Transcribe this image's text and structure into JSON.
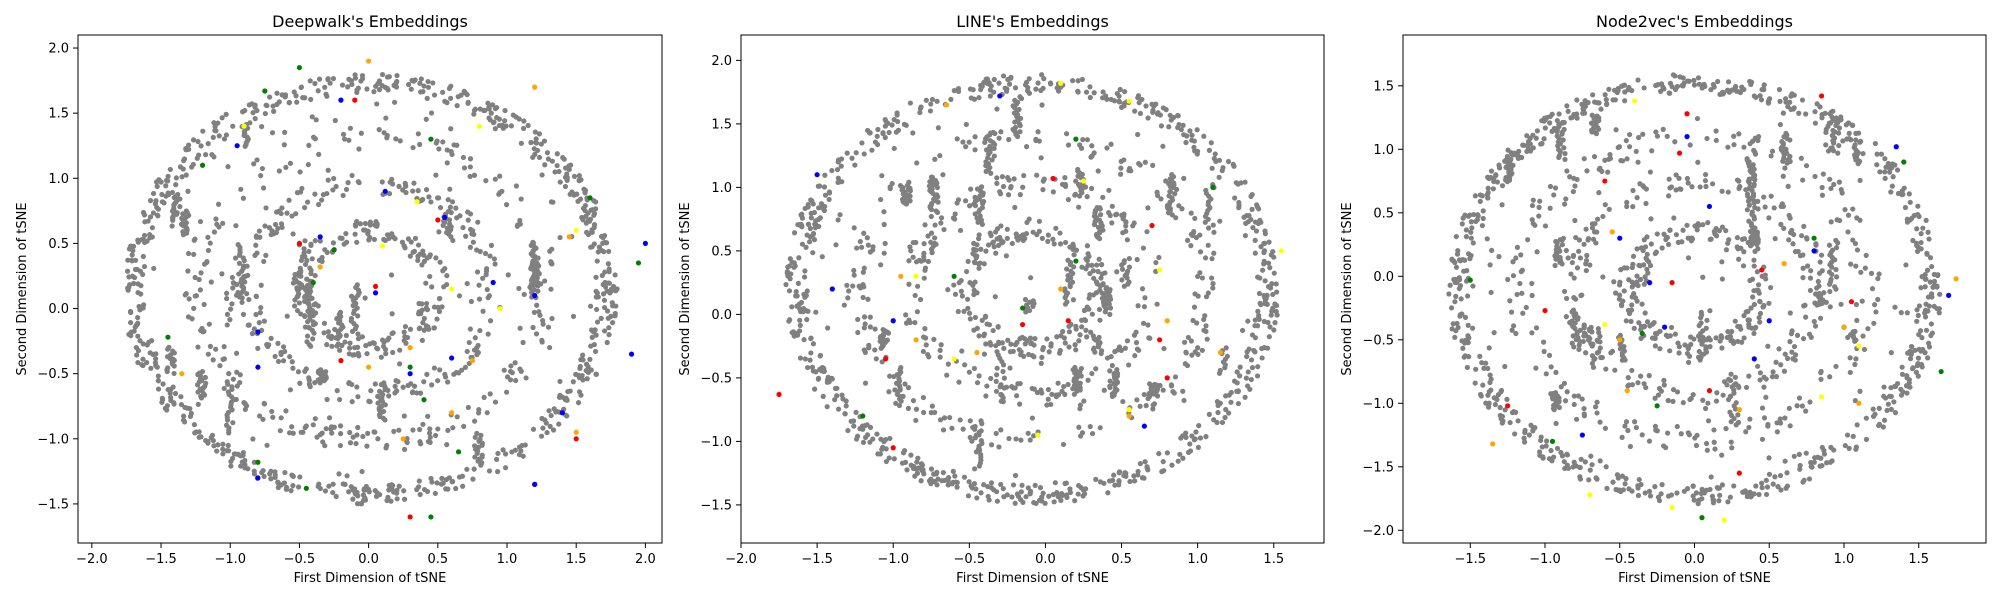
{
  "chart_data": [
    {
      "type": "scatter",
      "title": "Deepwalk's Embeddings",
      "xlabel": "First Dimension of tSNE",
      "ylabel": "Second Dimension of tSNE",
      "xlim": [
        -2.1,
        2.12
      ],
      "ylim": [
        -1.8,
        2.1
      ],
      "xticks": [
        -2.0,
        -1.5,
        -1.0,
        -0.5,
        0.0,
        0.5,
        1.0,
        1.5,
        2.0
      ],
      "xtick_labels": [
        "−2.0",
        "−1.5",
        "−1.0",
        "−0.5",
        "0.0",
        "0.5",
        "1.0",
        "1.5",
        "2.0"
      ],
      "yticks": [
        -1.5,
        -1.0,
        -0.5,
        0.0,
        0.5,
        1.0,
        1.5,
        2.0
      ],
      "ytick_labels": [
        "−1.5",
        "−1.0",
        "−0.5",
        "0.0",
        "0.5",
        "1.0",
        "1.5",
        "2.0"
      ],
      "grid": false,
      "series": [
        {
          "color": "#ff0000",
          "points": [
            [
              -0.5,
              0.5
            ],
            [
              0.05,
              0.17
            ],
            [
              0.5,
              0.68
            ],
            [
              -0.2,
              -0.4
            ],
            [
              1.2,
              -1.35
            ],
            [
              1.5,
              -1.0
            ],
            [
              -0.1,
              1.6
            ],
            [
              0.3,
              -1.6
            ]
          ]
        },
        {
          "color": "#0000ff",
          "points": [
            [
              -0.95,
              1.25
            ],
            [
              -0.2,
              1.6
            ],
            [
              0.12,
              0.9
            ],
            [
              0.55,
              0.7
            ],
            [
              0.9,
              0.2
            ],
            [
              1.2,
              0.1
            ],
            [
              -0.35,
              0.55
            ],
            [
              -0.8,
              -0.18
            ],
            [
              -0.8,
              -0.45
            ],
            [
              0.6,
              -0.38
            ],
            [
              1.4,
              -0.8
            ],
            [
              1.9,
              -0.35
            ],
            [
              -0.8,
              -1.3
            ],
            [
              1.2,
              -1.35
            ],
            [
              2.0,
              0.5
            ],
            [
              0.3,
              -0.5
            ],
            [
              0.05,
              0.12
            ]
          ]
        },
        {
          "color": "#008000",
          "points": [
            [
              -0.5,
              1.85
            ],
            [
              -0.75,
              1.67
            ],
            [
              -1.2,
              1.1
            ],
            [
              0.45,
              1.3
            ],
            [
              -0.4,
              0.2
            ],
            [
              1.6,
              0.85
            ],
            [
              -1.45,
              -0.22
            ],
            [
              -0.8,
              -1.18
            ],
            [
              -0.45,
              -1.38
            ],
            [
              0.4,
              -0.7
            ],
            [
              0.65,
              -1.1
            ],
            [
              1.95,
              0.35
            ],
            [
              -0.25,
              0.45
            ],
            [
              0.3,
              -0.45
            ],
            [
              0.45,
              -1.6
            ]
          ]
        },
        {
          "color": "#ffa500",
          "points": [
            [
              0.0,
              1.9
            ],
            [
              1.2,
              1.7
            ],
            [
              -1.35,
              -0.5
            ],
            [
              -0.35,
              0.32
            ],
            [
              0.3,
              -0.3
            ],
            [
              1.5,
              -0.95
            ],
            [
              0.25,
              -1.0
            ],
            [
              0.75,
              -0.4
            ],
            [
              0.0,
              -0.45
            ],
            [
              1.45,
              0.55
            ],
            [
              0.6,
              -0.8
            ]
          ]
        },
        {
          "color": "#ffff00",
          "points": [
            [
              0.8,
              1.4
            ],
            [
              0.1,
              0.48
            ],
            [
              0.95,
              0.0
            ],
            [
              0.35,
              0.82
            ],
            [
              -0.9,
              1.4
            ],
            [
              0.6,
              0.15
            ],
            [
              1.5,
              0.6
            ]
          ]
        }
      ]
    },
    {
      "type": "scatter",
      "title": "LINE's Embeddings",
      "xlabel": "First Dimension of tSNE",
      "ylabel": "Second Dimension of tSNE",
      "xlim": [
        -2.0,
        1.83
      ],
      "ylim": [
        -1.8,
        2.2
      ],
      "xticks": [
        -2.0,
        -1.5,
        -1.0,
        -0.5,
        0.0,
        0.5,
        1.0,
        1.5
      ],
      "xtick_labels": [
        "−2.0",
        "−1.5",
        "−1.0",
        "−0.5",
        "0.0",
        "0.5",
        "1.0",
        "1.5"
      ],
      "yticks": [
        -1.5,
        -1.0,
        -0.5,
        0.0,
        0.5,
        1.0,
        1.5,
        2.0
      ],
      "ytick_labels": [
        "−1.5",
        "−1.0",
        "−0.5",
        "0.0",
        "0.5",
        "1.0",
        "1.5",
        "2.0"
      ],
      "grid": false,
      "series": [
        {
          "color": "#ff0000",
          "points": [
            [
              -1.75,
              -0.63
            ],
            [
              -1.0,
              -1.05
            ],
            [
              0.05,
              1.07
            ],
            [
              -0.15,
              -0.08
            ],
            [
              0.75,
              -0.2
            ],
            [
              0.7,
              0.7
            ],
            [
              0.8,
              -0.5
            ],
            [
              -1.05,
              -0.35
            ],
            [
              0.15,
              -0.05
            ]
          ]
        },
        {
          "color": "#0000ff",
          "points": [
            [
              -0.3,
              1.72
            ],
            [
              -1.4,
              0.2
            ],
            [
              -1.0,
              -0.05
            ],
            [
              0.65,
              -0.88
            ],
            [
              -1.5,
              1.1
            ]
          ]
        },
        {
          "color": "#008000",
          "points": [
            [
              0.2,
              1.38
            ],
            [
              1.1,
              1.0
            ],
            [
              -1.2,
              -0.8
            ],
            [
              0.2,
              0.42
            ],
            [
              -0.6,
              0.3
            ],
            [
              -0.15,
              0.05
            ]
          ]
        },
        {
          "color": "#ffa500",
          "points": [
            [
              -0.65,
              1.65
            ],
            [
              -0.95,
              0.3
            ],
            [
              -0.45,
              -0.3
            ],
            [
              1.15,
              -0.3
            ],
            [
              0.55,
              -0.8
            ],
            [
              -0.85,
              -0.2
            ],
            [
              0.1,
              0.2
            ],
            [
              0.8,
              -0.05
            ]
          ]
        },
        {
          "color": "#ffff00",
          "points": [
            [
              0.1,
              1.82
            ],
            [
              0.55,
              1.68
            ],
            [
              -0.85,
              0.3
            ],
            [
              -0.6,
              -0.35
            ],
            [
              1.55,
              0.5
            ],
            [
              0.55,
              -0.75
            ],
            [
              0.25,
              1.05
            ],
            [
              -0.05,
              -0.95
            ],
            [
              0.75,
              0.35
            ]
          ]
        }
      ]
    },
    {
      "type": "scatter",
      "title": "Node2vec's Embeddings",
      "xlabel": "First Dimension of tSNE",
      "ylabel": "Second Dimension of tSNE",
      "xlim": [
        -1.95,
        1.95
      ],
      "ylim": [
        -2.1,
        1.9
      ],
      "xticks": [
        -1.5,
        -1.0,
        -0.5,
        0.0,
        0.5,
        1.0,
        1.5
      ],
      "xtick_labels": [
        "−1.5",
        "−1.0",
        "−0.5",
        "0.0",
        "0.5",
        "1.0",
        "1.5"
      ],
      "yticks": [
        -2.0,
        -1.5,
        -1.0,
        -0.5,
        0.0,
        0.5,
        1.0,
        1.5
      ],
      "ytick_labels": [
        "−2.0",
        "−1.5",
        "−1.0",
        "−0.5",
        "0.0",
        "0.5",
        "1.0",
        "1.5"
      ],
      "grid": false,
      "series": [
        {
          "color": "#ff0000",
          "points": [
            [
              -0.05,
              1.28
            ],
            [
              -0.1,
              0.97
            ],
            [
              0.85,
              1.42
            ],
            [
              -0.6,
              0.75
            ],
            [
              -1.0,
              -0.27
            ],
            [
              0.1,
              -0.9
            ],
            [
              -1.25,
              -1.02
            ],
            [
              0.3,
              -1.55
            ],
            [
              1.05,
              -0.2
            ],
            [
              -0.15,
              -0.05
            ],
            [
              0.45,
              0.05
            ]
          ]
        },
        {
          "color": "#0000ff",
          "points": [
            [
              -0.05,
              1.1
            ],
            [
              0.1,
              0.55
            ],
            [
              1.35,
              1.02
            ],
            [
              -0.5,
              0.3
            ],
            [
              0.8,
              0.2
            ],
            [
              1.0,
              -0.4
            ],
            [
              1.7,
              -0.15
            ],
            [
              0.4,
              -0.65
            ],
            [
              -0.75,
              -1.25
            ],
            [
              -0.2,
              -0.4
            ],
            [
              0.5,
              -0.35
            ],
            [
              -0.3,
              -0.05
            ]
          ]
        },
        {
          "color": "#008000",
          "points": [
            [
              1.4,
              0.9
            ],
            [
              -1.5,
              -0.03
            ],
            [
              -0.95,
              -1.3
            ],
            [
              -0.25,
              -1.02
            ],
            [
              1.65,
              -0.75
            ],
            [
              0.05,
              -1.9
            ],
            [
              -0.35,
              -0.45
            ],
            [
              0.8,
              0.3
            ]
          ]
        },
        {
          "color": "#ffa500",
          "points": [
            [
              -0.5,
              -0.5
            ],
            [
              -1.35,
              -1.32
            ],
            [
              1.0,
              -0.4
            ],
            [
              1.75,
              -0.02
            ],
            [
              -0.45,
              -0.9
            ],
            [
              0.3,
              -1.05
            ],
            [
              -0.55,
              0.35
            ],
            [
              1.1,
              -1.0
            ],
            [
              0.6,
              0.1
            ]
          ]
        },
        {
          "color": "#ffff00",
          "points": [
            [
              -0.6,
              -0.38
            ],
            [
              -0.7,
              -1.72
            ],
            [
              0.2,
              -1.92
            ],
            [
              -0.15,
              -1.82
            ],
            [
              1.1,
              -0.55
            ],
            [
              -0.4,
              1.38
            ],
            [
              0.85,
              -0.95
            ]
          ]
        }
      ]
    }
  ]
}
